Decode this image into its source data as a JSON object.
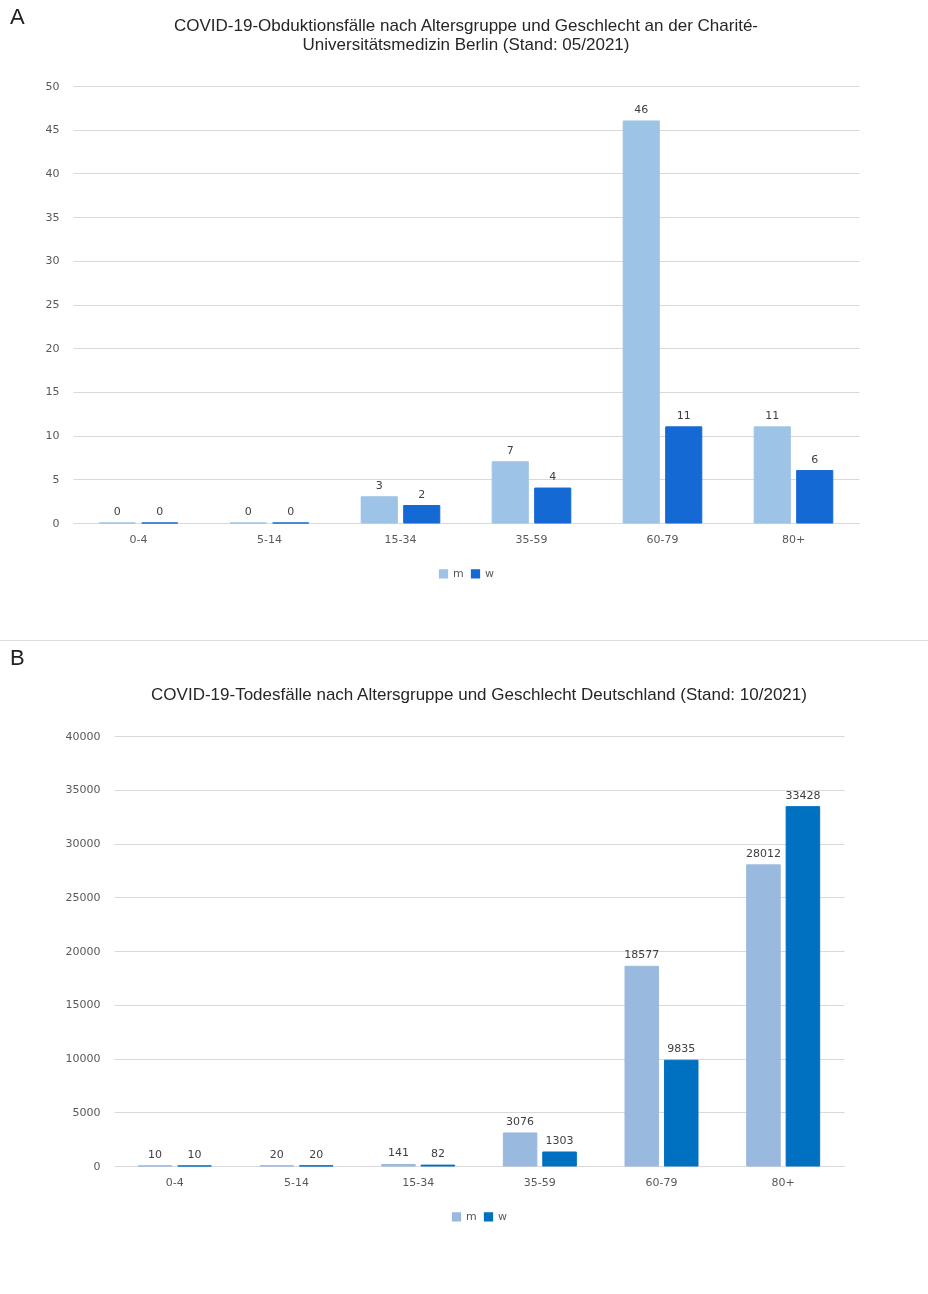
{
  "chart_data": [
    {
      "type": "bar",
      "title": "COVID-19-Obduktionsfälle nach Altersgruppe und Geschlecht an der Charité-Universitätsmedizin Berlin (Stand: 05/2021)",
      "annotations": [
        "A"
      ],
      "categories": [
        "0-4",
        "5-14",
        "15-34",
        "35-59",
        "60-79",
        "80+"
      ],
      "series": [
        {
          "name": "m",
          "color": "#9dc3e6",
          "values": [
            0,
            0,
            3,
            7,
            46,
            11
          ]
        },
        {
          "name": "w",
          "color": "#1469d4",
          "values": [
            0,
            0,
            2,
            4,
            11,
            6
          ]
        }
      ],
      "ylim": [
        0,
        50
      ],
      "yticks": [
        0,
        5,
        10,
        15,
        20,
        25,
        30,
        35,
        40,
        45,
        50
      ],
      "grid": "y",
      "legend": "bottom",
      "data_labels": true
    },
    {
      "type": "bar",
      "title": "COVID-19-Todesfälle nach Altersgruppe und Geschlecht Deutschland (Stand: 10/2021)",
      "annotations": [
        "B"
      ],
      "categories": [
        "0-4",
        "5-14",
        "15-34",
        "35-59",
        "60-79",
        "80+"
      ],
      "series": [
        {
          "name": "m",
          "color": "#9ab9de",
          "values": [
            10,
            20,
            141,
            3076,
            18577,
            28012
          ]
        },
        {
          "name": "w",
          "color": "#0070c0",
          "values": [
            10,
            20,
            82,
            1303,
            9835,
            33428
          ]
        }
      ],
      "ylim": [
        0,
        40000
      ],
      "yticks": [
        0,
        5000,
        10000,
        15000,
        20000,
        25000,
        30000,
        35000,
        40000
      ],
      "grid": "y",
      "legend": "bottom",
      "data_labels": true
    }
  ]
}
